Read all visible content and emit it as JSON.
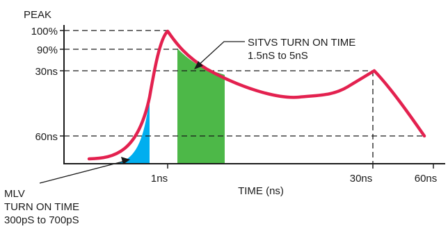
{
  "title": "",
  "y_axis": {
    "heading": "PEAK",
    "ticks": [
      "100%",
      "90%",
      "30ns",
      "60ns"
    ]
  },
  "x_axis": {
    "label": "TIME (ns)",
    "ticks": [
      "1ns",
      "30ns",
      "60ns"
    ]
  },
  "annotations": {
    "sitvs": {
      "line1": "SITVS TURN ON TIME",
      "line2": "1.5nS to 5nS"
    },
    "mlv": {
      "line1": "MLV",
      "line2": "TURN ON TIME",
      "line3": "300pS to 700pS"
    }
  },
  "colors": {
    "curve": "#e3214f",
    "mlv_region": "#00aeef",
    "sitvs_region": "#4db848",
    "axis": "#1a1a1a",
    "guide": "#1a1a1a"
  }
}
